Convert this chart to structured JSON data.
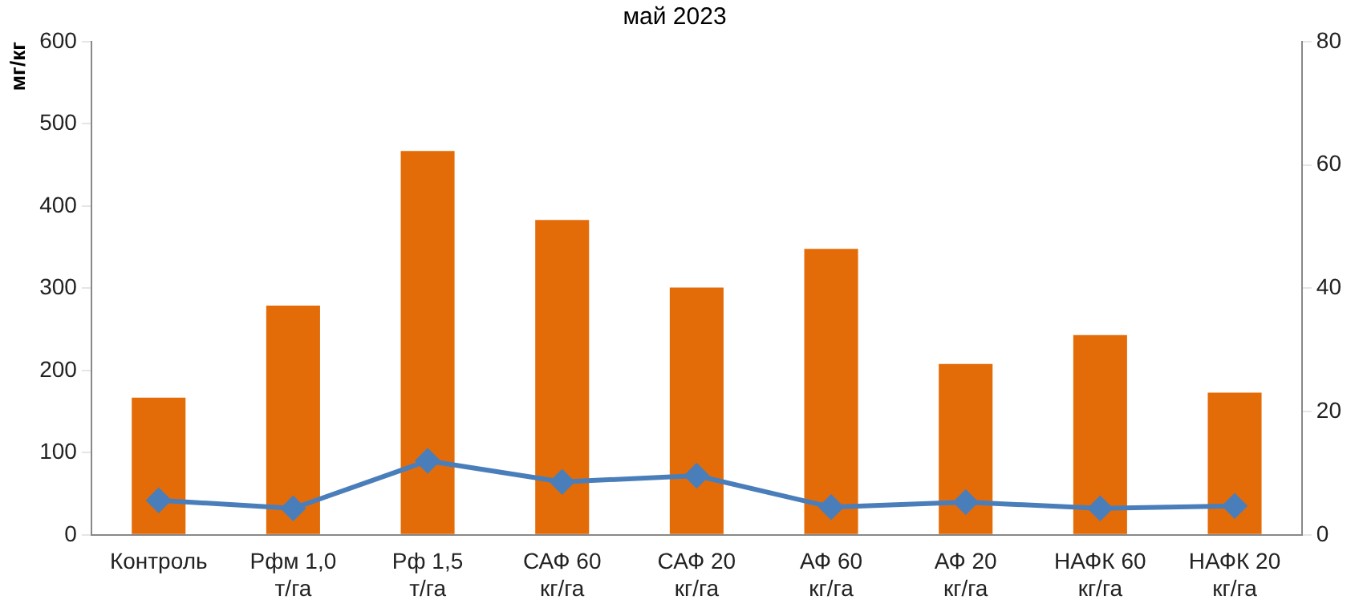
{
  "chart_data": {
    "type": "bar",
    "title": "май 2023",
    "ylabel": "мг/кг",
    "categories": [
      "Контроль",
      "Рфм 1,0 т/га",
      "Рф 1,5 т/га",
      "САФ 60 кг/га",
      "САФ 20 кг/га",
      "АФ 60 кг/га",
      "АФ 20 кг/га",
      "НАФК 60 кг/га",
      "НАФК 20 кг/га"
    ],
    "series": [
      {
        "color": "#e36c09",
        "values": [
          167,
          279,
          467,
          383,
          301,
          348,
          208,
          243,
          173
        ]
      },
      {
        "type": "line",
        "axis": "y2",
        "color": "#4a7ebb",
        "marker": "diamond",
        "values": [
          5.6,
          4.3,
          12.0,
          8.6,
          9.6,
          4.5,
          5.3,
          4.3,
          4.7
        ]
      }
    ],
    "ylim": [
      0,
      600
    ],
    "yticks": [
      0,
      100,
      200,
      300,
      400,
      500,
      600
    ],
    "y2lim": [
      0,
      80
    ],
    "y2ticks": [
      0,
      20,
      40,
      60,
      80
    ],
    "grid": false,
    "legend": false
  }
}
